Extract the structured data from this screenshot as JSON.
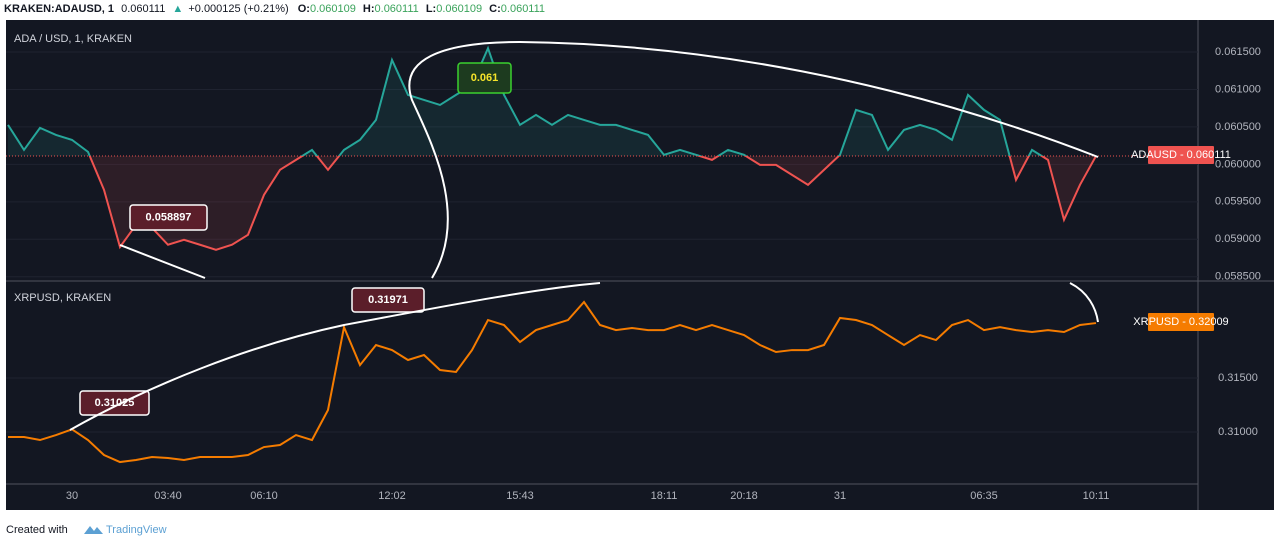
{
  "chart_data": [
    {
      "type": "line",
      "title": "ADA / USD, 1, KRAKEN",
      "symbol": "KRAKEN:ADAUSD, 1",
      "last": 0.060111,
      "change": "+0.000125 (+0.21%)",
      "ohlc": [
        {
          "label": "O:",
          "value": 0.060109
        },
        {
          "label": "H:",
          "value": 0.060111
        },
        {
          "label": "L:",
          "value": 0.060109
        },
        {
          "label": "C:",
          "value": 0.060111
        }
      ],
      "values": [
        0.060527,
        0.060193,
        0.060487,
        0.060393,
        0.060327,
        0.060167,
        0.05966,
        0.058897,
        0.059193,
        0.059153,
        0.058927,
        0.058993,
        0.058927,
        0.05886,
        0.058927,
        0.05906,
        0.059593,
        0.059927,
        0.06006,
        0.060193,
        0.059927,
        0.060193,
        0.060327,
        0.060593,
        0.061393,
        0.060927,
        0.06086,
        0.060793,
        0.060927,
        0.06106,
        0.06155,
        0.060927,
        0.060527,
        0.06066,
        0.060527,
        0.06066,
        0.060593,
        0.060527,
        0.060527,
        0.06046,
        0.060393,
        0.060127,
        0.060193,
        0.060127,
        0.06006,
        0.060193,
        0.060127,
        0.059993,
        0.059993,
        0.05986,
        0.059727,
        0.059927,
        0.060127,
        0.060727,
        0.06066,
        0.060193,
        0.06046,
        0.060527,
        0.06046,
        0.060327,
        0.060927,
        0.060727,
        0.060593,
        0.059793,
        0.060193,
        0.06006,
        0.05926,
        0.059727,
        0.060111
      ],
      "color_up": "#26a69a",
      "color_down": "#ef5350",
      "ylim": [
        0.05847,
        0.06182
      ],
      "yticks": [
        {
          "value": 0.0585,
          "label": "0.058500"
        },
        {
          "value": 0.059,
          "label": "0.059000"
        },
        {
          "value": 0.0595,
          "label": "0.059500"
        },
        {
          "value": 0.06,
          "label": "0.060000"
        },
        {
          "value": 0.0605,
          "label": "0.060500"
        },
        {
          "value": 0.061,
          "label": "0.061000"
        },
        {
          "value": 0.0615,
          "label": "0.061500"
        }
      ],
      "grid": true,
      "price_tag": "ADAUSD - 0.060111",
      "annotations": [
        "0.058897",
        "0.061"
      ]
    },
    {
      "type": "line",
      "title": "XRPUSD, KRAKEN",
      "categories": [
        null,
        null,
        null,
        null,
        "30",
        null,
        null,
        null,
        null,
        null,
        "03:40",
        null,
        null,
        null,
        null,
        null,
        "06:10",
        null,
        null,
        null,
        null,
        null,
        null,
        null,
        "12:02",
        null,
        null,
        null,
        null,
        null,
        null,
        null,
        "15:43",
        null,
        null,
        null,
        null,
        null,
        null,
        null,
        null,
        "18:11",
        null,
        null,
        null,
        null,
        "20:18",
        null,
        null,
        null,
        null,
        null,
        "31",
        null,
        null,
        null,
        null,
        null,
        null,
        null,
        null,
        "06:35",
        null,
        null,
        null,
        null,
        null,
        null,
        "10:11"
      ],
      "values": [
        0.30954,
        0.30954,
        0.30926,
        0.30972,
        0.31025,
        0.30926,
        0.30787,
        0.30722,
        0.30741,
        0.30769,
        0.30759,
        0.30741,
        0.30769,
        0.30769,
        0.30769,
        0.30787,
        0.30861,
        0.3088,
        0.30972,
        0.30926,
        0.31204,
        0.31971,
        0.3162,
        0.31806,
        0.31759,
        0.31667,
        0.31713,
        0.31574,
        0.31556,
        0.31759,
        0.32037,
        0.31991,
        0.31833,
        0.31944,
        0.31991,
        0.32037,
        0.32204,
        0.31991,
        0.31944,
        0.31963,
        0.31944,
        0.31944,
        0.31991,
        0.31944,
        0.31991,
        0.31944,
        0.31898,
        0.31806,
        0.31741,
        0.31759,
        0.31759,
        0.31806,
        0.32056,
        0.32037,
        0.31991,
        0.31898,
        0.31806,
        0.31898,
        0.31852,
        0.31991,
        0.32037,
        0.31944,
        0.31971,
        0.31944,
        0.31926,
        0.31944,
        0.31926,
        0.31991,
        0.32009
      ],
      "color": "#f57c00",
      "ylim": [
        0.30528,
        0.3238
      ],
      "yticks": [
        {
          "value": 0.31,
          "label": "0.31000"
        },
        {
          "value": 0.315,
          "label": "0.31500"
        }
      ],
      "grid": true,
      "price_tag": "XRPUSD - 0.32009",
      "annotations": [
        "0.31025",
        "0.31971"
      ]
    }
  ],
  "footer": {
    "text": "Created with",
    "brand": "TradingView"
  }
}
